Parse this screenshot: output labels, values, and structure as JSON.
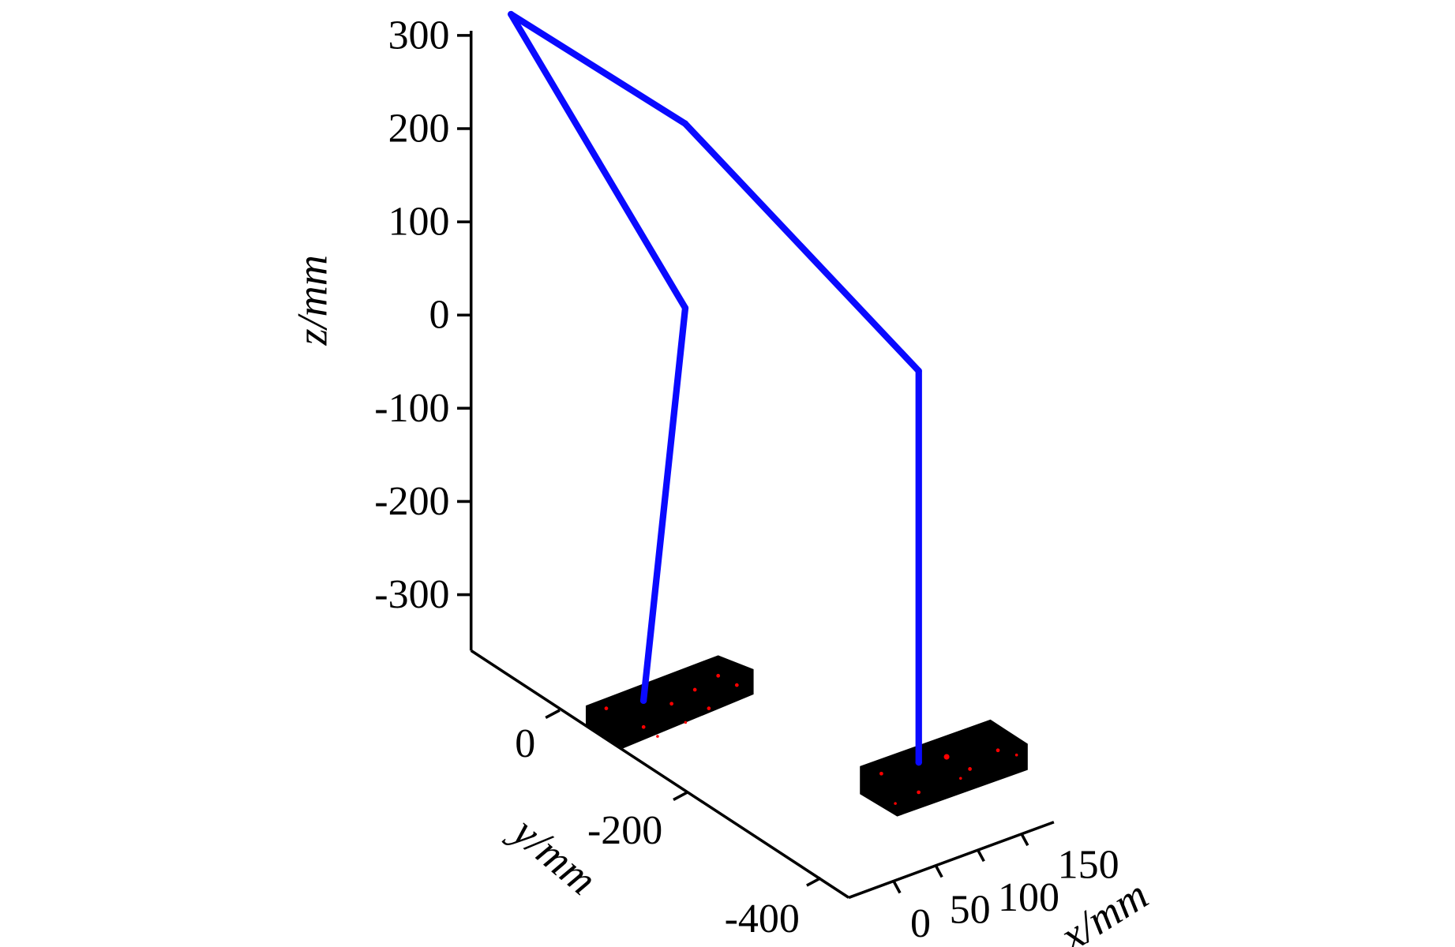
{
  "chart_data": {
    "type": "line",
    "projection": "3d",
    "xlabel": "x/mm",
    "ylabel": "y/mm",
    "zlabel": "z/mm",
    "x_ticks": [
      "0",
      "50",
      "100",
      "150"
    ],
    "y_ticks": [
      "0",
      "-200",
      "-400"
    ],
    "z_ticks": [
      "300",
      "200",
      "100",
      "0",
      "-100",
      "-200",
      "-300"
    ],
    "xlim": [
      -55,
      170
    ],
    "ylim": [
      -450,
      140
    ],
    "zlim": [
      -360,
      320
    ],
    "grid": false,
    "series": [
      {
        "color": "#0a0aff",
        "points": [
          {
            "x": 0,
            "y": -57,
            "z": -341
          },
          {
            "x": 0,
            "y": -121,
            "z": 109
          },
          {
            "x": 0,
            "y": 146,
            "z": 304
          },
          {
            "x": 70,
            "y": -31,
            "z": 241
          },
          {
            "x": 139,
            "y": -300,
            "z": 72
          },
          {
            "x": 139,
            "y": -300,
            "z": -348
          }
        ]
      }
    ],
    "objects_color": "#000000",
    "speckle_color": "#ff0000"
  }
}
